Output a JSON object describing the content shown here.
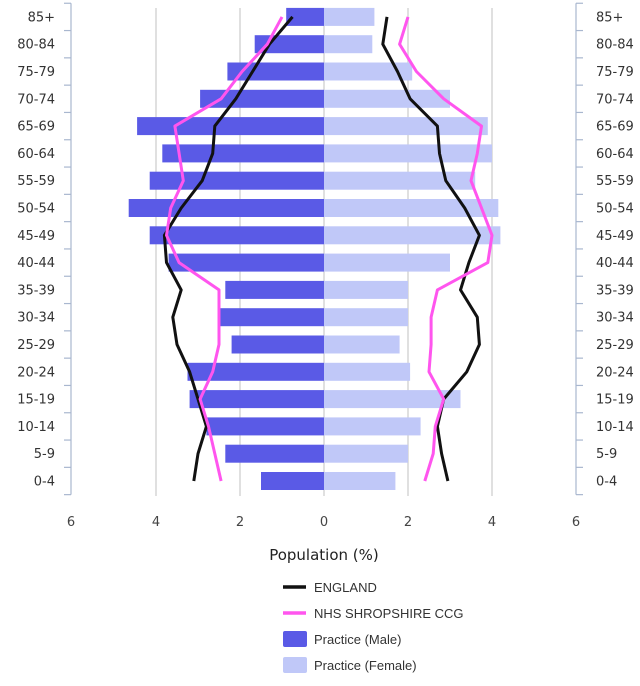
{
  "chart_data": {
    "type": "bar",
    "orientation": "horizontal",
    "layout": "population-pyramid",
    "categories": [
      "0-4",
      "5-9",
      "10-14",
      "15-19",
      "20-24",
      "25-29",
      "30-34",
      "35-39",
      "40-44",
      "45-49",
      "50-54",
      "55-59",
      "60-64",
      "65-69",
      "70-74",
      "75-79",
      "80-84",
      "85+"
    ],
    "series": [
      {
        "name": "Practice (Male)",
        "kind": "bar",
        "side": "left",
        "color": "#5a5ae6",
        "values": [
          1.5,
          2.35,
          2.8,
          3.2,
          3.25,
          2.2,
          2.5,
          2.35,
          3.7,
          4.15,
          4.65,
          4.15,
          3.85,
          4.45,
          2.95,
          2.3,
          1.65,
          0.9
        ]
      },
      {
        "name": "Practice (Female)",
        "kind": "bar",
        "side": "right",
        "color": "#c0c8f8",
        "values": [
          1.7,
          2.0,
          2.3,
          3.25,
          2.05,
          1.8,
          2.0,
          2.0,
          3.0,
          4.2,
          4.15,
          3.6,
          4.0,
          3.9,
          3.0,
          2.1,
          1.15,
          1.2
        ]
      },
      {
        "name": "ENGLAND",
        "kind": "line",
        "color": "#111111",
        "left": [
          3.1,
          3.0,
          2.8,
          3.0,
          3.2,
          3.5,
          3.6,
          3.4,
          3.75,
          3.8,
          3.4,
          2.9,
          2.65,
          2.6,
          2.1,
          1.7,
          1.3,
          0.75
        ],
        "right": [
          2.95,
          2.8,
          2.7,
          2.85,
          3.4,
          3.7,
          3.65,
          3.25,
          3.45,
          3.7,
          3.35,
          2.9,
          2.75,
          2.7,
          2.05,
          1.75,
          1.4,
          1.5
        ]
      },
      {
        "name": "NHS SHROPSHIRE CCG",
        "kind": "line",
        "color": "#ff55ee",
        "left": [
          2.45,
          2.6,
          2.75,
          2.95,
          2.65,
          2.5,
          2.5,
          2.5,
          3.45,
          3.75,
          3.65,
          3.35,
          3.45,
          3.55,
          2.45,
          1.95,
          1.35,
          1.0
        ],
        "right": [
          2.4,
          2.6,
          2.65,
          2.85,
          2.5,
          2.55,
          2.55,
          2.7,
          3.9,
          4.0,
          3.75,
          3.5,
          3.65,
          3.75,
          2.85,
          2.2,
          1.8,
          2.0
        ]
      }
    ],
    "xlabel": "Population (%)",
    "xticks": [
      "6",
      "4",
      "2",
      "0",
      "2",
      "4",
      "6"
    ],
    "xlim": [
      -6,
      6
    ],
    "grid": "vertical",
    "legend_position": "bottom-center"
  }
}
